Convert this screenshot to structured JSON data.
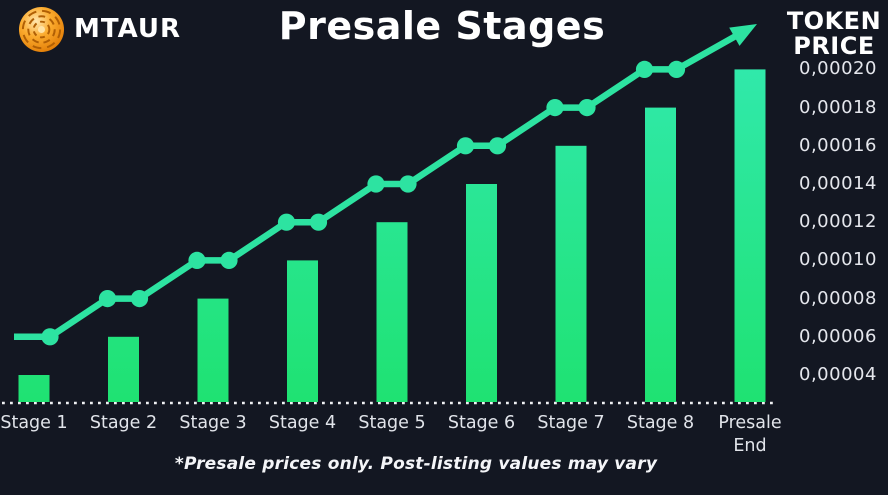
{
  "header": {
    "brand": "MTAUR",
    "logo_icon": "mtaur-coin-logo",
    "title": "Presale Stages",
    "ylabel_lines": [
      "TOKEN",
      "PRICE"
    ]
  },
  "footnote": "*Presale prices only. Post-listing values may vary",
  "colors": {
    "background": "#131722",
    "line_green": "#2de3a1",
    "bar_top": "#31e9ac",
    "bar_bottom": "#1fe272",
    "baseline_dots": "#eef0f2",
    "text_white": "#ffffff",
    "text_muted": "#e1e4ea",
    "coin_light": "#ffdf9e",
    "coin_mid": "#fbab2e",
    "coin_dark": "#ef8306",
    "coin_maze": "#b05f05"
  },
  "chart_data": {
    "type": "bar",
    "title": "Presale Stages",
    "ylabel": "TOKEN PRICE",
    "categories": [
      "Stage 1",
      "Stage 2",
      "Stage 3",
      "Stage 4",
      "Stage 5",
      "Stage 6",
      "Stage 7",
      "Stage 8",
      "Presale End"
    ],
    "series": [
      {
        "name": "stage-token-price-bars",
        "type": "bar",
        "values": [
          4e-05,
          6e-05,
          8e-05,
          0.0001,
          0.00012,
          0.00014,
          0.00016,
          0.00018,
          0.0002
        ]
      },
      {
        "name": "price-trend-line",
        "type": "line",
        "values": [
          6e-05,
          8e-05,
          0.0001,
          0.00012,
          0.00014,
          0.00016,
          0.00018,
          0.0002,
          null
        ],
        "trend_arrow": true
      }
    ],
    "y_ticks": [
      {
        "label": "0,00020",
        "value": 0.0002
      },
      {
        "label": "0,00018",
        "value": 0.00018
      },
      {
        "label": "0,00016",
        "value": 0.00016
      },
      {
        "label": "0,00014",
        "value": 0.00014
      },
      {
        "label": "0,00012",
        "value": 0.00012
      },
      {
        "label": "0,00010",
        "value": 0.0001
      },
      {
        "label": "0,00008",
        "value": 8e-05
      },
      {
        "label": "0,00006",
        "value": 6e-05
      },
      {
        "label": "0,00004",
        "value": 4e-05
      }
    ],
    "ylim": [
      2.5e-05,
      0.000215
    ],
    "grid": false,
    "legend": false,
    "decimal_separator": ","
  }
}
